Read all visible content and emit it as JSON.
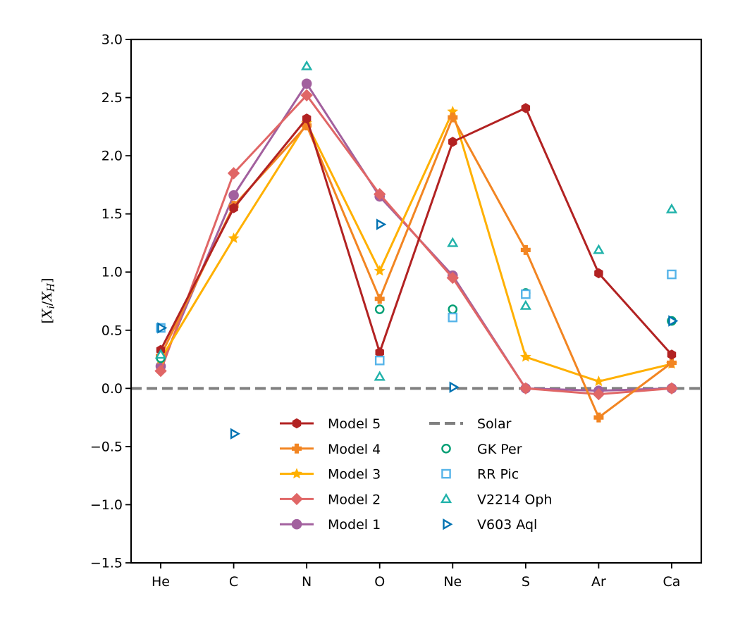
{
  "chart_data": {
    "type": "line",
    "title": "",
    "xlabel": "",
    "ylabel": "[X_i/X_H]",
    "ylabel_display": {
      "open": "[",
      "X": "X",
      "i": "i",
      "slash": "/",
      "H": "H",
      "close": "]"
    },
    "categories": [
      "He",
      "C",
      "N",
      "O",
      "Ne",
      "S",
      "Ar",
      "Ca"
    ],
    "ylim": [
      -1.5,
      3.0
    ],
    "yticks": [
      -1.5,
      -1.0,
      -0.5,
      0.0,
      0.5,
      1.0,
      1.5,
      2.0,
      2.5,
      3.0
    ],
    "ytick_labels": [
      "−1.5",
      "−1.0",
      "−0.5",
      "0.0",
      "0.5",
      "1.0",
      "1.5",
      "2.0",
      "2.5",
      "3.0"
    ],
    "grid": false,
    "legend_position": "bottom-center",
    "series": [
      {
        "name": "Model 5",
        "color": "#b22222",
        "marker": "hexagon",
        "values": [
          0.33,
          1.55,
          2.32,
          0.31,
          2.12,
          2.41,
          0.99,
          0.29
        ]
      },
      {
        "name": "Model 4",
        "color": "#f28522",
        "marker": "plus",
        "values": [
          0.28,
          1.57,
          2.26,
          0.77,
          2.33,
          1.19,
          -0.25,
          0.22
        ]
      },
      {
        "name": "Model 3",
        "color": "#ffb000",
        "marker": "star",
        "values": [
          0.25,
          1.29,
          2.28,
          1.01,
          2.38,
          0.27,
          0.06,
          0.21
        ]
      },
      {
        "name": "Model 2",
        "color": "#e06666",
        "marker": "diamond",
        "values": [
          0.15,
          1.85,
          2.52,
          1.67,
          0.95,
          0.0,
          -0.05,
          0.0
        ]
      },
      {
        "name": "Model 1",
        "color": "#a2609e",
        "marker": "circle",
        "values": [
          0.19,
          1.66,
          2.62,
          1.65,
          0.97,
          0.0,
          -0.02,
          0.0
        ]
      }
    ],
    "reference": {
      "name": "Solar",
      "value": 0.0,
      "color": "#808080",
      "style": "dashed"
    },
    "observations": [
      {
        "name": "GK Per",
        "color": "#009e73",
        "marker": "circle",
        "points": [
          [
            "He",
            0.26
          ],
          [
            "O",
            0.68
          ],
          [
            "Ne",
            0.68
          ],
          [
            "S",
            0.82
          ],
          [
            "Ca",
            0.58
          ]
        ]
      },
      {
        "name": "RR Pic",
        "color": "#56b4e9",
        "marker": "square",
        "points": [
          [
            "He",
            0.52
          ],
          [
            "O",
            0.24
          ],
          [
            "Ne",
            0.61
          ],
          [
            "S",
            0.81
          ],
          [
            "Ca",
            0.98
          ]
        ]
      },
      {
        "name": "V2214 Oph",
        "color": "#20b2aa",
        "marker": "triangle-up",
        "points": [
          [
            "He",
            0.29
          ],
          [
            "N",
            2.77
          ],
          [
            "O",
            0.1
          ],
          [
            "Ne",
            1.25
          ],
          [
            "S",
            0.71
          ],
          [
            "Ar",
            1.19
          ],
          [
            "Ca",
            1.54
          ]
        ]
      },
      {
        "name": "V603 Aql",
        "color": "#0072b2",
        "marker": "triangle-right",
        "points": [
          [
            "He",
            0.52
          ],
          [
            "C",
            -0.39
          ],
          [
            "O",
            1.41
          ],
          [
            "Ne",
            0.01
          ],
          [
            "Ca",
            0.58
          ]
        ]
      }
    ],
    "legend_left": [
      "Model 5",
      "Model 4",
      "Model 3",
      "Model 2",
      "Model 1"
    ],
    "legend_right": [
      "Solar",
      "GK Per",
      "RR Pic",
      "V2214 Oph",
      "V603 Aql"
    ]
  }
}
